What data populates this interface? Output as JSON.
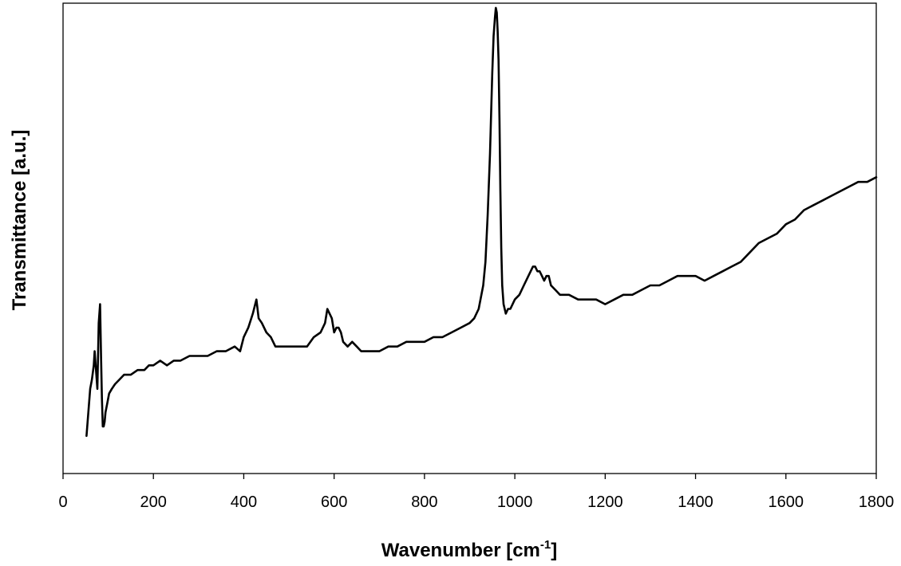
{
  "chart_data": {
    "type": "line",
    "title": "",
    "xlabel": "Wavenumber [cm",
    "xlabel_sup": "-1",
    "xlabel_suffix": "]",
    "ylabel": "Transmittance [a.u.]",
    "xlim": [
      0,
      1800
    ],
    "ylim": [
      0,
      100
    ],
    "x_ticks": [
      0,
      200,
      400,
      600,
      800,
      1000,
      1200,
      1400,
      1600,
      1800
    ],
    "y_ticks_shown": false,
    "grid": false,
    "legend": "none",
    "line_color": "#000000",
    "series": [
      {
        "x": [
          52,
          56,
          60,
          64,
          68,
          70,
          73,
          76,
          79,
          82,
          84,
          86,
          88,
          90,
          92,
          94,
          98,
          102,
          108,
          115,
          125,
          135,
          150,
          165,
          180,
          190,
          200,
          215,
          230,
          245,
          260,
          280,
          300,
          320,
          340,
          360,
          380,
          392,
          400,
          410,
          420,
          428,
          433,
          440,
          450,
          460,
          470,
          480,
          490,
          500,
          520,
          540,
          555,
          570,
          580,
          585,
          590,
          595,
          600,
          605,
          610,
          615,
          620,
          630,
          640,
          650,
          660,
          680,
          700,
          720,
          740,
          760,
          780,
          800,
          820,
          840,
          860,
          880,
          900,
          910,
          920,
          930,
          935,
          940,
          945,
          950,
          953,
          956,
          958,
          960,
          962,
          964,
          966,
          968,
          970,
          972,
          975,
          980,
          985,
          990,
          1000,
          1010,
          1020,
          1030,
          1040,
          1045,
          1050,
          1055,
          1060,
          1065,
          1070,
          1075,
          1080,
          1090,
          1100,
          1120,
          1140,
          1160,
          1180,
          1200,
          1220,
          1240,
          1260,
          1280,
          1300,
          1320,
          1340,
          1360,
          1380,
          1400,
          1420,
          1440,
          1460,
          1480,
          1500,
          1520,
          1540,
          1560,
          1580,
          1600,
          1620,
          1640,
          1660,
          1680,
          1700,
          1720,
          1740,
          1760,
          1780,
          1800
        ],
        "y": [
          8,
          13,
          18,
          20,
          23,
          26,
          22,
          18,
          32,
          36,
          25,
          16,
          10,
          10,
          11,
          13,
          15,
          17,
          18,
          19,
          20,
          21,
          21,
          22,
          22,
          23,
          23,
          24,
          23,
          24,
          24,
          25,
          25,
          25,
          26,
          26,
          27,
          26,
          29,
          31,
          34,
          37,
          33,
          32,
          30,
          29,
          27,
          27,
          27,
          27,
          27,
          27,
          29,
          30,
          32,
          35,
          34,
          33,
          30,
          31,
          31,
          30,
          28,
          27,
          28,
          27,
          26,
          26,
          26,
          27,
          27,
          28,
          28,
          28,
          29,
          29,
          30,
          31,
          32,
          33,
          35,
          40,
          45,
          55,
          68,
          85,
          93,
          97,
          99,
          98,
          94,
          88,
          75,
          60,
          48,
          40,
          36,
          34,
          35,
          35,
          37,
          38,
          40,
          42,
          44,
          44,
          43,
          43,
          42,
          41,
          42,
          42,
          40,
          39,
          38,
          38,
          37,
          37,
          37,
          36,
          37,
          38,
          38,
          39,
          40,
          40,
          41,
          42,
          42,
          42,
          41,
          42,
          43,
          44,
          45,
          47,
          49,
          50,
          51,
          53,
          54,
          56,
          57,
          58,
          59,
          60,
          61,
          62,
          62,
          63
        ]
      }
    ]
  }
}
